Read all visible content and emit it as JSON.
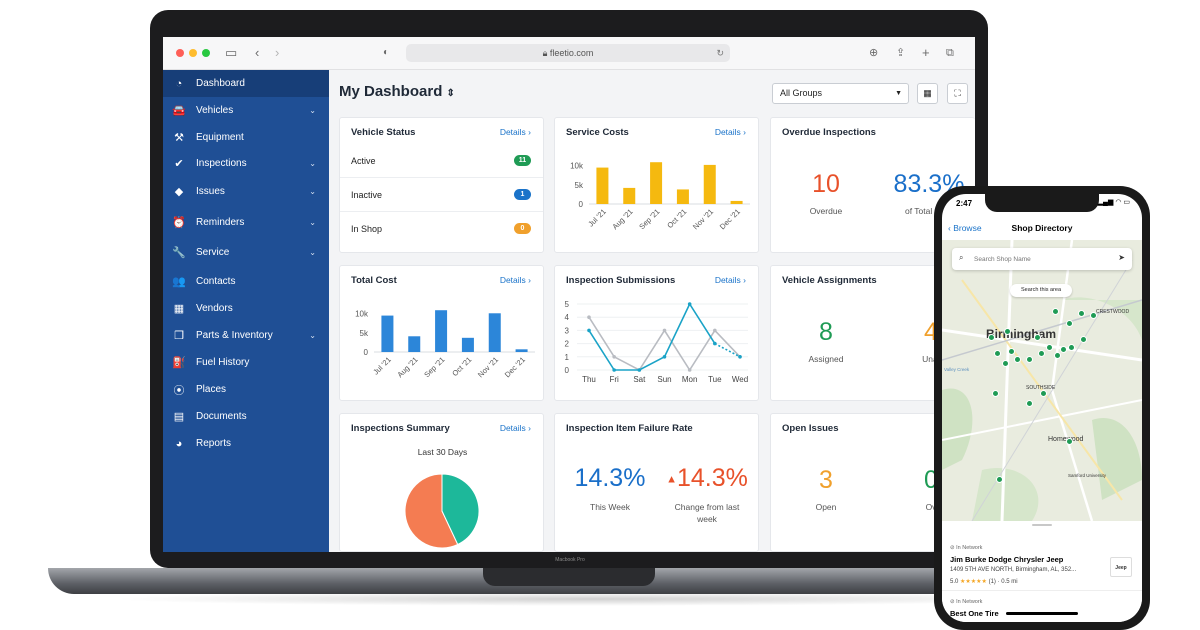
{
  "browser": {
    "url": "fleetio.com"
  },
  "laptop": {
    "model_label": "Macbook Pro"
  },
  "sidebar": {
    "items": [
      {
        "label": "Dashboard",
        "icon": "dashboard-icon",
        "glyph": "◔",
        "has_chevron": false
      },
      {
        "label": "Vehicles",
        "icon": "car-icon",
        "glyph": "🚘",
        "has_chevron": true
      },
      {
        "label": "Equipment",
        "icon": "equipment-icon",
        "glyph": "⚒",
        "has_chevron": false
      },
      {
        "label": "Inspections",
        "icon": "check-circle-icon",
        "glyph": "✔",
        "has_chevron": true
      },
      {
        "label": "Issues",
        "icon": "warning-diamond-icon",
        "glyph": "◆",
        "has_chevron": true
      },
      {
        "label": "Reminders",
        "icon": "alarm-clock-icon",
        "glyph": "⏰",
        "has_chevron": true
      },
      {
        "label": "Service",
        "icon": "wrench-icon",
        "glyph": "🔧",
        "has_chevron": true
      },
      {
        "label": "Contacts",
        "icon": "contacts-icon",
        "glyph": "👥",
        "has_chevron": false
      },
      {
        "label": "Vendors",
        "icon": "store-icon",
        "glyph": "▦",
        "has_chevron": false
      },
      {
        "label": "Parts & Inventory",
        "icon": "box-icon",
        "glyph": "❒",
        "has_chevron": true
      },
      {
        "label": "Fuel History",
        "icon": "fuel-icon",
        "glyph": "⛽",
        "has_chevron": false
      },
      {
        "label": "Places",
        "icon": "map-pin-icon",
        "glyph": "⦿",
        "has_chevron": false
      },
      {
        "label": "Documents",
        "icon": "document-icon",
        "glyph": "▤",
        "has_chevron": false
      },
      {
        "label": "Reports",
        "icon": "pie-chart-icon",
        "glyph": "◕",
        "has_chevron": false
      }
    ]
  },
  "header": {
    "title": "My Dashboard",
    "title_icon": "sort-arrows-icon",
    "group_select": "All Groups"
  },
  "cards": {
    "details_label": "Details",
    "vehicle_status": {
      "title": "Vehicle Status",
      "rows": [
        {
          "label": "Active",
          "count": "11",
          "color": "#1f9b55"
        },
        {
          "label": "Inactive",
          "count": "1",
          "color": "#1a73c9"
        },
        {
          "label": "In Shop",
          "count": "0",
          "color": "#f0a02c"
        }
      ]
    },
    "service_costs": {
      "title": "Service Costs",
      "chart_data": {
        "type": "bar",
        "categories": [
          "Jul '21",
          "Aug '21",
          "Sep '21",
          "Oct '21",
          "Nov '21",
          "Dec '21"
        ],
        "values": [
          9500,
          4200,
          10900,
          3800,
          10200,
          800
        ],
        "yticks": [
          "10k",
          "5k",
          "0"
        ],
        "ylim": [
          0,
          12000
        ],
        "color": "#f5b90f"
      }
    },
    "overdue_inspections": {
      "title": "Overdue Inspections",
      "overdue_value": "10",
      "overdue_label": "Overdue",
      "percent_value": "83.3%",
      "percent_label": "of Total Sche"
    },
    "total_cost": {
      "title": "Total Cost",
      "chart_data": {
        "type": "bar",
        "categories": [
          "Jul '21",
          "Aug '21",
          "Sep '21",
          "Oct '21",
          "Nov '21",
          "Dec '21"
        ],
        "values": [
          9500,
          4100,
          10900,
          3700,
          10100,
          700
        ],
        "yticks": [
          "10k",
          "5k",
          "0"
        ],
        "ylim": [
          0,
          12000
        ],
        "color": "#2c86d9"
      }
    },
    "inspection_submissions": {
      "title": "Inspection Submissions",
      "chart_data": {
        "type": "line",
        "categories": [
          "Thu",
          "Fri",
          "Sat",
          "Sun",
          "Mon",
          "Tue",
          "Wed"
        ],
        "yticks": [
          "5",
          "4",
          "3",
          "2",
          "1",
          "0"
        ],
        "ylim": [
          0,
          5
        ],
        "series": [
          {
            "values": [
              4,
              1,
              0,
              3,
              0,
              3,
              1
            ],
            "color": "#b9bcc2"
          },
          {
            "values": [
              3,
              0,
              0,
              1,
              5,
              2,
              1
            ],
            "color": "#1aa3c7"
          }
        ]
      }
    },
    "vehicle_assignments": {
      "title": "Vehicle Assignments",
      "assigned_value": "8",
      "assigned_label": "Assigned",
      "unassigned_value": "4",
      "unassigned_label": "Unassig"
    },
    "inspections_summary": {
      "title": "Inspections Summary",
      "subtitle": "Last 30 Days",
      "chart_data": {
        "type": "pie",
        "slices": [
          {
            "value": 57,
            "color": "#f47c52"
          },
          {
            "value": 43,
            "color": "#1db89a"
          }
        ]
      }
    },
    "inspection_failure_rate": {
      "title": "Inspection Item Failure Rate",
      "week_value": "14.3%",
      "week_label": "This Week",
      "change_arrow": "▲",
      "change_value": "14.3%",
      "change_label_1": "Change from last",
      "change_label_2": "week"
    },
    "open_issues": {
      "title": "Open Issues",
      "open_value": "3",
      "open_label": "Open",
      "overdue_value": "0",
      "overdue_label": "Overdu"
    }
  },
  "phone": {
    "time": "2:47",
    "status_icons": "▂▄▆ ◠ ▭",
    "back_label": "Browse",
    "title": "Shop Directory",
    "search_placeholder": "Search Shop Name",
    "search_area_label": "Search this area",
    "map_labels": {
      "city": "Birmingham",
      "southside": "SOUTHSIDE",
      "homewood": "Homewood",
      "crestwood": "CRESTWOOD",
      "samford": "Samford University",
      "creek": "Valley Creek"
    },
    "listings": [
      {
        "network": "In Network",
        "name": "Jim Burke  Dodge Chrysler Jeep",
        "address": "1409 5TH AVE NORTH, Birmingham, AL, 352...",
        "rating": "5.0",
        "stars": "★★★★★",
        "reviews": "(1)",
        "distance": "· 0.5 mi",
        "logo": "Jeep"
      },
      {
        "network": "In Network",
        "name": "Best One Tire"
      }
    ]
  }
}
